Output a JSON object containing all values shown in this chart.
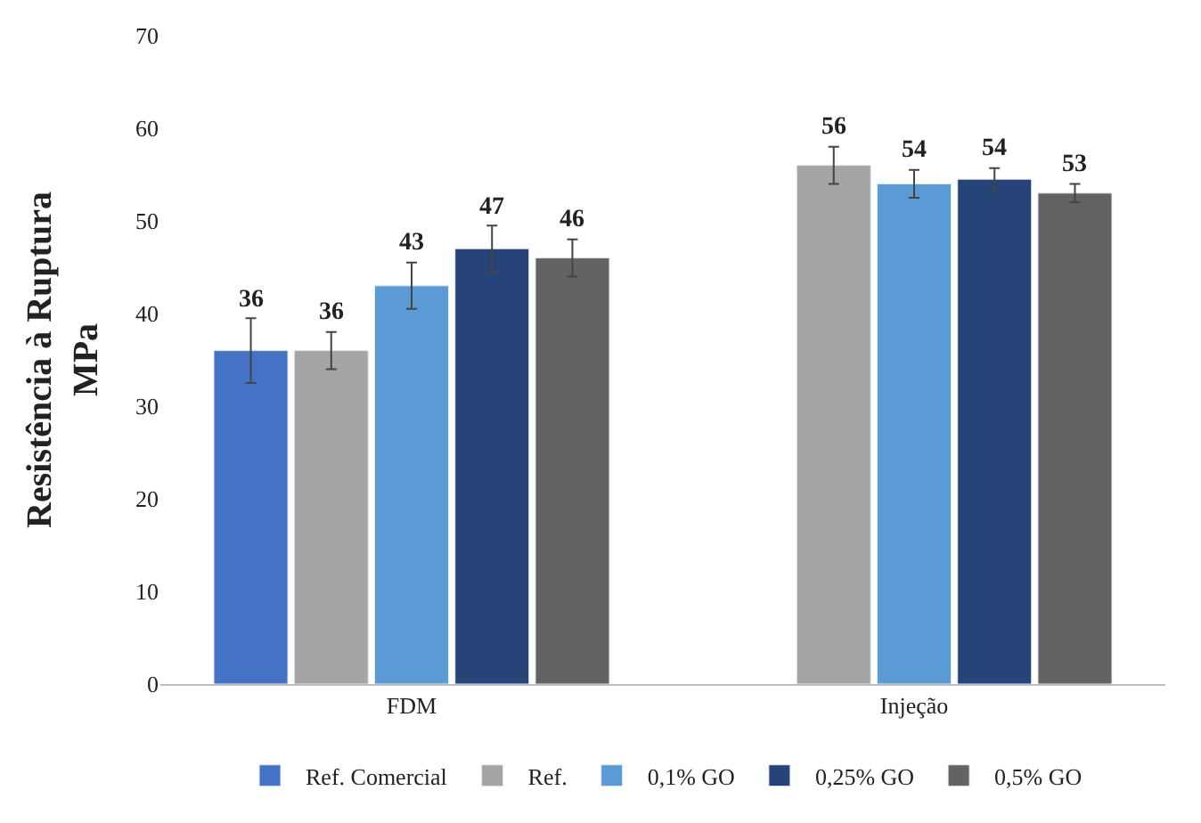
{
  "chart_data": {
    "type": "bar",
    "ylabel": "Resistência à Ruptura\nMPa",
    "categories": [
      "FDM",
      "Injeção"
    ],
    "series": [
      {
        "name": "Ref. Comercial",
        "color": "#4472c4",
        "values": [
          36,
          null
        ],
        "errors": [
          3.5,
          null
        ],
        "value_labels": [
          "36",
          null
        ]
      },
      {
        "name": "Ref.",
        "color": "#a5a5a5",
        "values": [
          36,
          56
        ],
        "errors": [
          2,
          2
        ],
        "value_labels": [
          "36",
          "56"
        ]
      },
      {
        "name": "0,1% GO",
        "color": "#5b9bd5",
        "values": [
          43,
          54
        ],
        "errors": [
          2.5,
          1.5
        ],
        "value_labels": [
          "43",
          "54"
        ]
      },
      {
        "name": "0,25% GO",
        "color": "#264478",
        "values": [
          47,
          54.5
        ],
        "errors": [
          2.5,
          1.2
        ],
        "value_labels": [
          "47",
          "54"
        ]
      },
      {
        "name": "0,5% GO",
        "color": "#636363",
        "values": [
          46,
          53
        ],
        "errors": [
          2,
          1
        ],
        "value_labels": [
          "46",
          "53"
        ]
      }
    ],
    "ylim": [
      0,
      70
    ],
    "yticks": [
      0,
      10,
      20,
      30,
      40,
      50,
      60,
      70
    ],
    "legend": "bottom"
  }
}
